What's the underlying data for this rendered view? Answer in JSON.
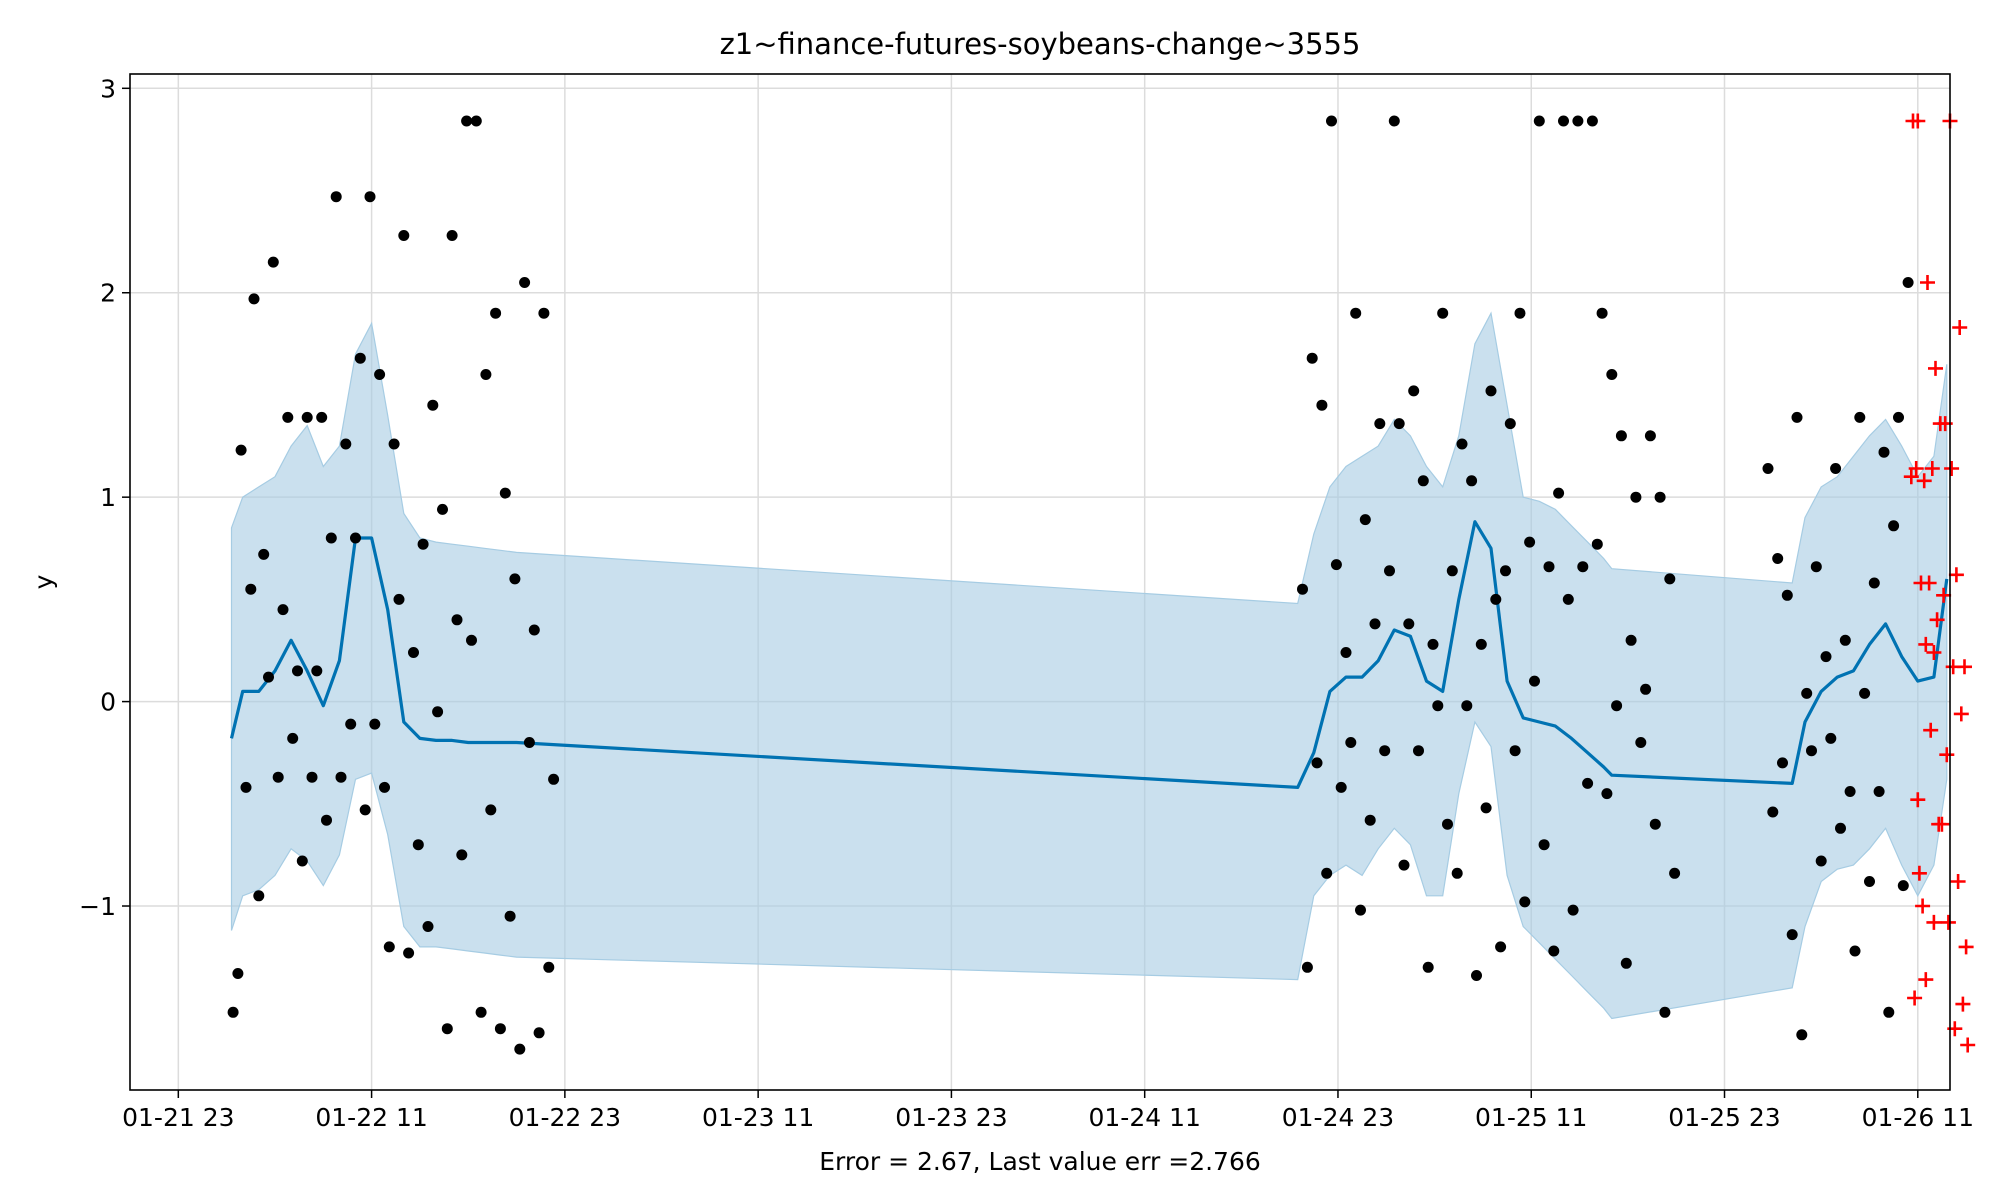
{
  "chart_data": {
    "type": "line",
    "title": "z1~finance-futures-soybeans-change~3555",
    "xlabel": "Error = 2.67, Last value err =2.766",
    "ylabel": "y",
    "x_unit": "hours",
    "xlim": [
      -3,
      110
    ],
    "ylim": [
      -1.9,
      3.07
    ],
    "grid": true,
    "x_ticks": [
      {
        "value": 0,
        "label": "01-21 23"
      },
      {
        "value": 12,
        "label": "01-22 11"
      },
      {
        "value": 24,
        "label": "01-22 23"
      },
      {
        "value": 36,
        "label": "01-23 11"
      },
      {
        "value": 48,
        "label": "01-23 23"
      },
      {
        "value": 60,
        "label": "01-24 11"
      },
      {
        "value": 72,
        "label": "01-24 23"
      },
      {
        "value": 84,
        "label": "01-25 11"
      },
      {
        "value": 96,
        "label": "01-25 23"
      },
      {
        "value": 108,
        "label": "01-26 11"
      }
    ],
    "y_ticks": [
      {
        "value": -1,
        "label": "−1"
      },
      {
        "value": 0,
        "label": "0"
      },
      {
        "value": 1,
        "label": "1"
      },
      {
        "value": 2,
        "label": "2"
      },
      {
        "value": 3,
        "label": "3"
      }
    ],
    "colors": {
      "forecast": "#0072B2",
      "band": "#a6cce3",
      "observed": "#000000",
      "test": "#ff0000"
    },
    "series": [
      {
        "kind": "forecast_line",
        "x": [
          3.3,
          4,
          5,
          6,
          7,
          8,
          9,
          10,
          11,
          12,
          13,
          14,
          15,
          16,
          17,
          18,
          19,
          20,
          21,
          69.5,
          70.5,
          71.5,
          72.5,
          73.5,
          74.5,
          75.5,
          76.5,
          77.5,
          78.5,
          79.5,
          80.5,
          81.5,
          82.5,
          83.5,
          84.5,
          85.5,
          86.5,
          87.5,
          88.5,
          89,
          100.2,
          101,
          102,
          103,
          104,
          105,
          106,
          107,
          108,
          109,
          109.8
        ],
        "y": [
          -0.18,
          0.05,
          0.05,
          0.15,
          0.3,
          0.15,
          -0.02,
          0.2,
          0.8,
          0.8,
          0.45,
          -0.1,
          -0.18,
          -0.19,
          -0.19,
          -0.2,
          -0.2,
          -0.2,
          -0.2,
          -0.42,
          -0.25,
          0.05,
          0.12,
          0.12,
          0.2,
          0.35,
          0.32,
          0.1,
          0.05,
          0.5,
          0.88,
          0.75,
          0.1,
          -0.08,
          -0.1,
          -0.12,
          -0.18,
          -0.25,
          -0.32,
          -0.36,
          -0.4,
          -0.1,
          0.05,
          0.12,
          0.15,
          0.28,
          0.38,
          0.22,
          0.1,
          0.12,
          0.6
        ]
      },
      {
        "kind": "confidence_band",
        "x": [
          3.3,
          4,
          5,
          6,
          7,
          8,
          9,
          10,
          11,
          12,
          13,
          14,
          15,
          16,
          17,
          18,
          19,
          20,
          21,
          69.5,
          70.5,
          71.5,
          72.5,
          73.5,
          74.5,
          75.5,
          76.5,
          77.5,
          78.5,
          79.5,
          80.5,
          81.5,
          82.5,
          83.5,
          84.5,
          85.5,
          86.5,
          87.5,
          88.5,
          89,
          100.2,
          101,
          102,
          103,
          104,
          105,
          106,
          107,
          108,
          109,
          109.8
        ],
        "upper": [
          0.85,
          1.0,
          1.05,
          1.1,
          1.25,
          1.35,
          1.15,
          1.25,
          1.7,
          1.85,
          1.4,
          0.92,
          0.8,
          0.78,
          0.77,
          0.76,
          0.75,
          0.74,
          0.73,
          0.48,
          0.82,
          1.05,
          1.15,
          1.2,
          1.25,
          1.38,
          1.3,
          1.15,
          1.05,
          1.3,
          1.75,
          1.9,
          1.45,
          1.0,
          0.98,
          0.94,
          0.86,
          0.78,
          0.7,
          0.65,
          0.58,
          0.9,
          1.05,
          1.1,
          1.2,
          1.3,
          1.38,
          1.25,
          1.1,
          1.2,
          1.65
        ],
        "lower": [
          -1.12,
          -0.95,
          -0.92,
          -0.85,
          -0.72,
          -0.78,
          -0.9,
          -0.75,
          -0.38,
          -0.35,
          -0.65,
          -1.1,
          -1.2,
          -1.2,
          -1.21,
          -1.22,
          -1.23,
          -1.24,
          -1.25,
          -1.36,
          -0.95,
          -0.85,
          -0.8,
          -0.85,
          -0.72,
          -0.62,
          -0.7,
          -0.95,
          -0.95,
          -0.45,
          -0.1,
          -0.22,
          -0.85,
          -1.1,
          -1.18,
          -1.26,
          -1.34,
          -1.42,
          -1.5,
          -1.55,
          -1.4,
          -1.1,
          -0.88,
          -0.82,
          -0.8,
          -0.72,
          -0.62,
          -0.8,
          -0.95,
          -0.8,
          -0.38
        ]
      },
      {
        "kind": "observed",
        "points": [
          [
            3.4,
            -1.52
          ],
          [
            3.7,
            -1.33
          ],
          [
            3.9,
            1.23
          ],
          [
            4.2,
            -0.42
          ],
          [
            4.5,
            0.55
          ],
          [
            4.7,
            1.97
          ],
          [
            5,
            -0.95
          ],
          [
            5.3,
            0.72
          ],
          [
            5.6,
            0.12
          ],
          [
            5.9,
            2.15
          ],
          [
            6.2,
            -0.37
          ],
          [
            6.5,
            0.45
          ],
          [
            6.8,
            1.39
          ],
          [
            7.1,
            -0.18
          ],
          [
            7.4,
            0.15
          ],
          [
            7.7,
            -0.78
          ],
          [
            8,
            1.39
          ],
          [
            8.3,
            -0.37
          ],
          [
            8.6,
            0.15
          ],
          [
            8.9,
            1.39
          ],
          [
            9.2,
            -0.58
          ],
          [
            9.5,
            0.8
          ],
          [
            9.8,
            2.47
          ],
          [
            10.1,
            -0.37
          ],
          [
            10.4,
            1.26
          ],
          [
            10.7,
            -0.11
          ],
          [
            11,
            0.8
          ],
          [
            11.3,
            1.68
          ],
          [
            11.6,
            -0.53
          ],
          [
            11.9,
            2.47
          ],
          [
            12.2,
            -0.11
          ],
          [
            12.5,
            1.6
          ],
          [
            12.8,
            -0.42
          ],
          [
            13.1,
            -1.2
          ],
          [
            13.4,
            1.26
          ],
          [
            13.7,
            0.5
          ],
          [
            14,
            2.28
          ],
          [
            14.3,
            -1.23
          ],
          [
            14.6,
            0.24
          ],
          [
            14.9,
            -0.7
          ],
          [
            15.2,
            0.77
          ],
          [
            15.5,
            -1.1
          ],
          [
            15.8,
            1.45
          ],
          [
            16.1,
            -0.05
          ],
          [
            16.4,
            0.94
          ],
          [
            16.7,
            -1.6
          ],
          [
            17,
            2.28
          ],
          [
            17.3,
            0.4
          ],
          [
            17.6,
            -0.75
          ],
          [
            17.9,
            2.84
          ],
          [
            18.2,
            0.3
          ],
          [
            18.5,
            2.84
          ],
          [
            18.8,
            -1.52
          ],
          [
            19.1,
            1.6
          ],
          [
            19.4,
            -0.53
          ],
          [
            19.7,
            1.9
          ],
          [
            20,
            -1.6
          ],
          [
            20.3,
            1.02
          ],
          [
            20.6,
            -1.05
          ],
          [
            20.9,
            0.6
          ],
          [
            21.2,
            -1.7
          ],
          [
            21.5,
            2.05
          ],
          [
            21.8,
            -0.2
          ],
          [
            22.1,
            0.35
          ],
          [
            22.4,
            -1.62
          ],
          [
            22.7,
            1.9
          ],
          [
            23,
            -1.3
          ],
          [
            23.3,
            -0.38
          ],
          [
            69.8,
            0.55
          ],
          [
            70.1,
            -1.3
          ],
          [
            70.4,
            1.68
          ],
          [
            70.7,
            -0.3
          ],
          [
            71,
            1.45
          ],
          [
            71.3,
            -0.84
          ],
          [
            71.6,
            2.84
          ],
          [
            71.9,
            0.67
          ],
          [
            72.2,
            -0.42
          ],
          [
            72.5,
            0.24
          ],
          [
            72.8,
            -0.2
          ],
          [
            73.1,
            1.9
          ],
          [
            73.4,
            -1.02
          ],
          [
            73.7,
            0.89
          ],
          [
            74,
            -0.58
          ],
          [
            74.3,
            0.38
          ],
          [
            74.6,
            1.36
          ],
          [
            74.9,
            -0.24
          ],
          [
            75.2,
            0.64
          ],
          [
            75.5,
            2.84
          ],
          [
            75.8,
            1.36
          ],
          [
            76.1,
            -0.8
          ],
          [
            76.4,
            0.38
          ],
          [
            76.7,
            1.52
          ],
          [
            77,
            -0.24
          ],
          [
            77.3,
            1.08
          ],
          [
            77.6,
            -1.3
          ],
          [
            77.9,
            0.28
          ],
          [
            78.2,
            -0.02
          ],
          [
            78.5,
            1.9
          ],
          [
            78.8,
            -0.6
          ],
          [
            79.1,
            0.64
          ],
          [
            79.4,
            -0.84
          ],
          [
            79.7,
            1.26
          ],
          [
            80,
            -0.02
          ],
          [
            80.3,
            1.08
          ],
          [
            80.6,
            -1.34
          ],
          [
            80.9,
            0.28
          ],
          [
            81.2,
            -0.52
          ],
          [
            81.5,
            1.52
          ],
          [
            81.8,
            0.5
          ],
          [
            82.1,
            -1.2
          ],
          [
            82.4,
            0.64
          ],
          [
            82.7,
            1.36
          ],
          [
            83,
            -0.24
          ],
          [
            83.3,
            1.9
          ],
          [
            83.6,
            -0.98
          ],
          [
            83.9,
            0.78
          ],
          [
            84.2,
            0.1
          ],
          [
            84.5,
            2.84
          ],
          [
            84.8,
            -0.7
          ],
          [
            85.1,
            0.66
          ],
          [
            85.4,
            -1.22
          ],
          [
            85.7,
            1.02
          ],
          [
            86,
            2.84
          ],
          [
            86.3,
            0.5
          ],
          [
            86.6,
            -1.02
          ],
          [
            86.9,
            2.84
          ],
          [
            87.2,
            0.66
          ],
          [
            87.5,
            -0.4
          ],
          [
            87.8,
            2.84
          ],
          [
            88.1,
            0.77
          ],
          [
            88.4,
            1.9
          ],
          [
            88.7,
            -0.45
          ],
          [
            89,
            1.6
          ],
          [
            89.3,
            -0.02
          ],
          [
            89.6,
            1.3
          ],
          [
            89.9,
            -1.28
          ],
          [
            90.2,
            0.3
          ],
          [
            90.5,
            1.0
          ],
          [
            90.8,
            -0.2
          ],
          [
            91.1,
            0.06
          ],
          [
            91.4,
            1.3
          ],
          [
            91.7,
            -0.6
          ],
          [
            92,
            1.0
          ],
          [
            92.3,
            -1.52
          ],
          [
            92.6,
            0.6
          ],
          [
            92.9,
            -0.84
          ],
          [
            98.7,
            1.14
          ],
          [
            99,
            -0.54
          ],
          [
            99.3,
            0.7
          ],
          [
            99.6,
            -0.3
          ],
          [
            99.9,
            0.52
          ],
          [
            100.2,
            -1.14
          ],
          [
            100.5,
            1.39
          ],
          [
            100.8,
            -1.63
          ],
          [
            101.1,
            0.04
          ],
          [
            101.4,
            -0.24
          ],
          [
            101.7,
            0.66
          ],
          [
            102,
            -0.78
          ],
          [
            102.3,
            0.22
          ],
          [
            102.6,
            -0.18
          ],
          [
            102.9,
            1.14
          ],
          [
            103.2,
            -0.62
          ],
          [
            103.5,
            0.3
          ],
          [
            103.8,
            -0.44
          ],
          [
            104.1,
            -1.22
          ],
          [
            104.4,
            1.39
          ],
          [
            104.7,
            0.04
          ],
          [
            105,
            -0.88
          ],
          [
            105.3,
            0.58
          ],
          [
            105.6,
            -0.44
          ],
          [
            105.9,
            1.22
          ],
          [
            106.2,
            -1.52
          ],
          [
            106.5,
            0.86
          ],
          [
            106.8,
            1.39
          ],
          [
            107.1,
            -0.9
          ],
          [
            107.4,
            2.05
          ]
        ]
      },
      {
        "kind": "test",
        "points": [
          [
            107.6,
            1.1
          ],
          [
            107.7,
            2.84
          ],
          [
            107.8,
            -1.45
          ],
          [
            107.9,
            1.14
          ],
          [
            108,
            2.84
          ],
          [
            108,
            -0.48
          ],
          [
            108.1,
            -0.84
          ],
          [
            108.2,
            0.58
          ],
          [
            108.3,
            -1.0
          ],
          [
            108.4,
            1.08
          ],
          [
            108.5,
            0.28
          ],
          [
            108.5,
            -1.36
          ],
          [
            108.6,
            2.05
          ],
          [
            108.7,
            0.58
          ],
          [
            108.8,
            -0.14
          ],
          [
            108.9,
            1.14
          ],
          [
            109,
            0.24
          ],
          [
            109,
            -1.08
          ],
          [
            109.1,
            1.63
          ],
          [
            109.2,
            0.4
          ],
          [
            109.3,
            -0.6
          ],
          [
            109.4,
            1.36
          ],
          [
            109.5,
            -0.6
          ],
          [
            109.6,
            0.52
          ],
          [
            109.7,
            1.36
          ],
          [
            109.8,
            -0.26
          ],
          [
            109.9,
            -1.08
          ],
          [
            110,
            2.84
          ],
          [
            110.1,
            1.14
          ],
          [
            110.2,
            0.17
          ],
          [
            110.3,
            -1.6
          ],
          [
            110.4,
            0.62
          ],
          [
            110.5,
            -0.88
          ],
          [
            110.6,
            1.83
          ],
          [
            110.7,
            -0.06
          ],
          [
            110.8,
            -1.48
          ],
          [
            110.9,
            0.17
          ],
          [
            111,
            -1.2
          ],
          [
            111.1,
            -1.68
          ]
        ]
      }
    ]
  }
}
